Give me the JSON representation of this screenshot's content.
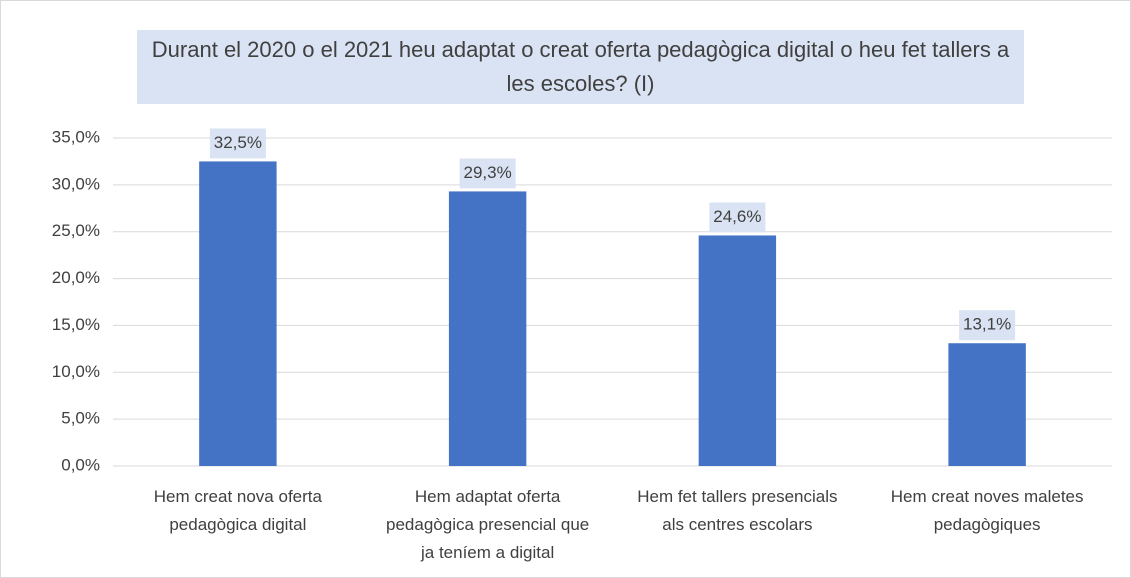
{
  "chart_data": {
    "type": "bar",
    "title": "Durant el 2020 o el 2021 heu adaptat o creat oferta pedagògica digital o heu fet tallers a les escoles? (I)",
    "categories": [
      "Hem creat nova oferta pedagògica digital",
      "Hem adaptat oferta pedagògica presencial que ja teníem a digital",
      "Hem fet tallers presencials als centres escolars",
      "Hem creat noves maletes pedagògiques"
    ],
    "values": [
      32.5,
      29.3,
      24.6,
      13.1
    ],
    "value_labels": [
      "32,5%",
      "29,3%",
      "24,6%",
      "13,1%"
    ],
    "color": "#4472c4",
    "ylim": [
      0,
      35
    ],
    "yticks": [
      {
        "value": 0,
        "label": "0,0%"
      },
      {
        "value": 5,
        "label": "5,0%"
      },
      {
        "value": 10,
        "label": "10,0%"
      },
      {
        "value": 15,
        "label": "15,0%"
      },
      {
        "value": 20,
        "label": "20,0%"
      },
      {
        "value": 25,
        "label": "25,0%"
      },
      {
        "value": 30,
        "label": "30,0%"
      },
      {
        "value": 35,
        "label": "35,0%"
      }
    ],
    "grid": true
  }
}
